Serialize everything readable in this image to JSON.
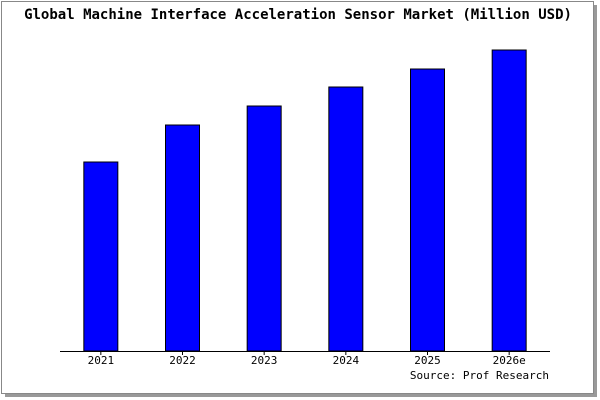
{
  "chart_data": {
    "type": "bar",
    "title": "Global Machine Interface Acceleration Sensor Market (Million USD)",
    "categories": [
      "2021",
      "2022",
      "2023",
      "2024",
      "2025",
      "2026e"
    ],
    "values": [
      189,
      226,
      245,
      264,
      282,
      301
    ],
    "color": "#0000ff",
    "ylim": [
      0,
      306
    ],
    "source": "Source: Prof Research"
  }
}
